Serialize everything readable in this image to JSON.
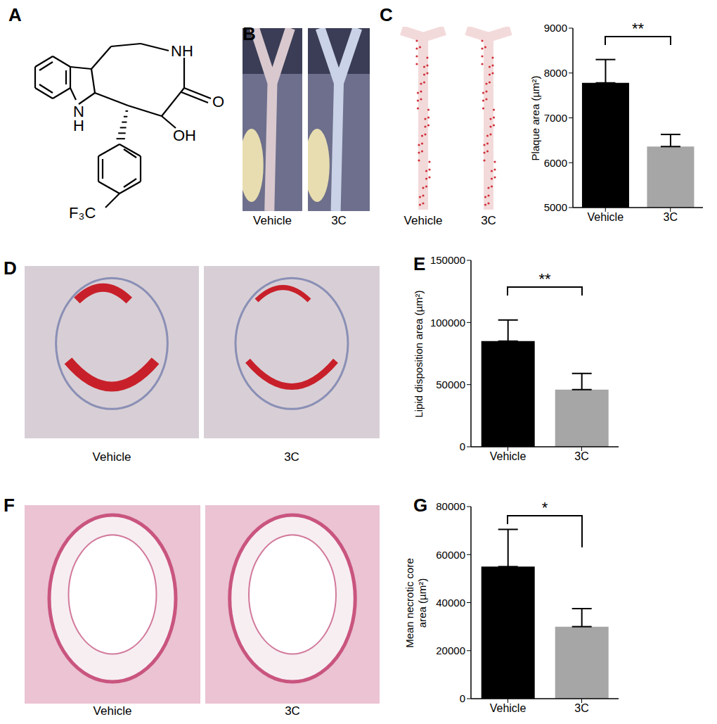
{
  "panel_labels": [
    "A",
    "B",
    "C",
    "D",
    "E",
    "F",
    "G"
  ],
  "structure": {
    "labels": {
      "amide_nh": "NH",
      "carbonyl_o": "O",
      "hydroxyl": "OH",
      "indole_n": "N",
      "indole_h": "H",
      "substituent": "F₃C"
    }
  },
  "image_panels": [
    {
      "panel": "B",
      "captions": [
        "Vehicle",
        "3C"
      ]
    },
    {
      "panel": "C",
      "captions": [
        "Vehicle",
        "3C"
      ]
    },
    {
      "panel": "D",
      "captions": [
        "Vehicle",
        "3C"
      ]
    },
    {
      "panel": "F",
      "captions": [
        "Vehicle",
        "3C"
      ]
    }
  ],
  "chart_data": [
    {
      "type": "bar",
      "panel": "C",
      "y_label": "Plaque area (µm²)",
      "categories": [
        "Vehicle",
        "3C"
      ],
      "values": [
        7780,
        6360
      ],
      "errors": [
        520,
        270
      ],
      "colors": [
        "#000000",
        "#a6a6a6"
      ],
      "ylim": [
        5000,
        9000
      ],
      "yticks": [
        5000,
        6000,
        7000,
        8000,
        9000
      ],
      "significance": "**"
    },
    {
      "type": "bar",
      "panel": "E",
      "y_label": "Lipid disposition area (µm²)",
      "categories": [
        "Vehicle",
        "3C"
      ],
      "values": [
        85000,
        46000
      ],
      "errors": [
        17000,
        13000
      ],
      "colors": [
        "#000000",
        "#a6a6a6"
      ],
      "ylim": [
        0,
        150000
      ],
      "yticks": [
        0,
        50000,
        100000,
        150000
      ],
      "significance": "**"
    },
    {
      "type": "bar",
      "panel": "G",
      "y_label": "Mean necrotic core area (µm²)",
      "categories": [
        "Vehicle",
        "3C"
      ],
      "values": [
        55000,
        30000
      ],
      "errors": [
        15500,
        7500
      ],
      "colors": [
        "#000000",
        "#a6a6a6"
      ],
      "ylim": [
        0,
        80000
      ],
      "yticks": [
        0,
        20000,
        40000,
        60000,
        80000
      ],
      "significance": "*"
    }
  ]
}
